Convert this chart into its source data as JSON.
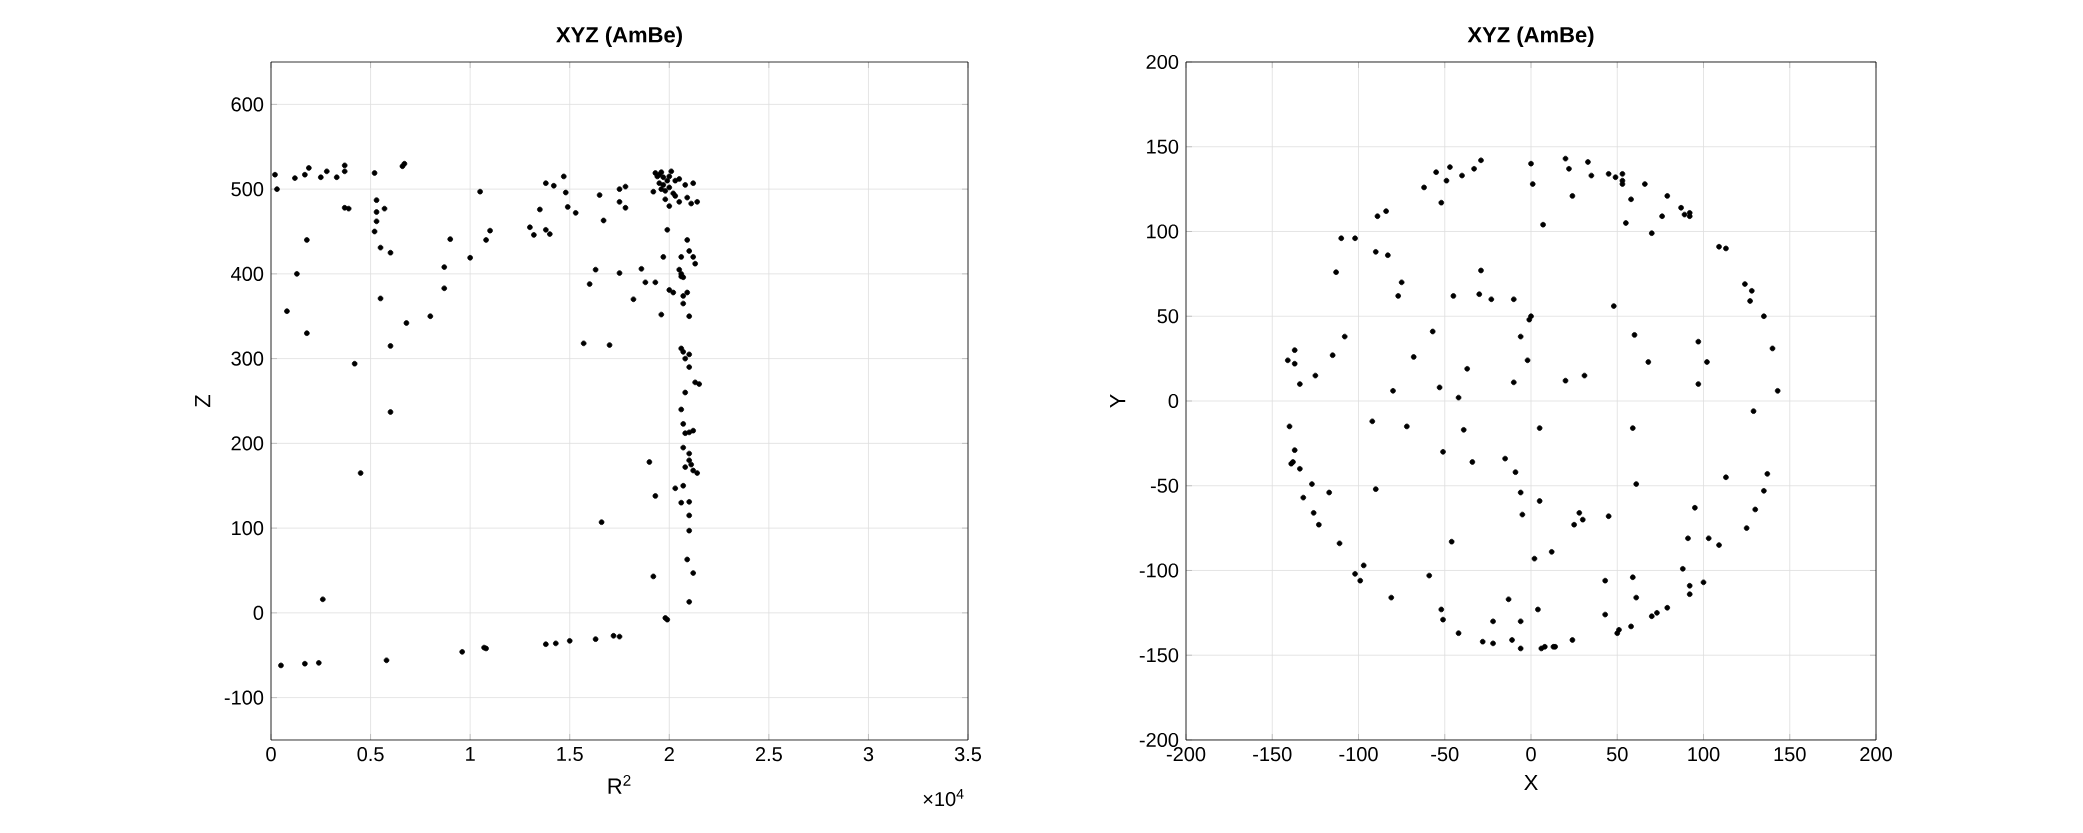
{
  "chart_data": [
    {
      "type": "scatter",
      "title": "XYZ (AmBe)",
      "xlabel": "R$^{2}$",
      "ylabel": "Z",
      "grid": true,
      "annotations": [
        "×10$^{4}$"
      ],
      "xlim": [
        0,
        3.5
      ],
      "ylim": [
        -150,
        650
      ],
      "xticks": [
        0,
        0.5,
        1,
        1.5,
        2,
        2.5,
        3,
        3.5
      ],
      "yticks": [
        -100,
        0,
        100,
        200,
        300,
        400,
        500,
        600
      ],
      "series": [
        {
          "color": "#000000",
          "x": [
            0.02,
            0.03,
            0.12,
            0.17,
            0.19,
            0.25,
            0.28,
            0.33,
            0.37,
            0.37,
            0.52,
            0.66,
            0.67,
            0.37,
            0.39,
            0.53,
            0.53,
            0.57,
            0.53,
            0.52,
            0.55,
            0.6,
            0.18,
            0.08,
            0.13,
            0.18,
            0.42,
            0.55,
            0.6,
            0.68,
            0.8,
            0.6,
            0.45,
            0.87,
            0.87,
            0.9,
            1.0,
            1.05,
            1.08,
            1.1,
            1.3,
            1.32,
            1.35,
            1.38,
            1.4,
            1.38,
            1.42,
            1.47,
            1.48,
            1.49,
            1.53,
            1.6,
            1.63,
            1.65,
            1.67,
            1.7,
            1.57,
            1.75,
            1.75,
            1.75,
            1.78,
            1.78,
            1.82,
            1.86,
            1.88,
            1.9,
            1.92,
            1.93,
            1.93,
            1.96,
            1.98,
            1.99,
            1.97,
            1.92,
            1.93,
            1.94,
            1.95,
            1.96,
            1.97,
            1.95,
            1.97,
            1.99,
            1.96,
            1.98,
            2.0,
            2.01,
            2.03,
            2.05,
            2.0,
            2.02,
            2.08,
            2.12,
            1.98,
            2.0,
            2.03,
            2.05,
            2.09,
            2.11,
            2.14,
            1.99,
            2.06,
            2.09,
            2.1,
            2.12,
            2.13,
            2.05,
            2.06,
            2.06,
            2.07,
            2.0,
            2.02,
            2.07,
            2.07,
            2.09,
            2.1,
            2.06,
            2.07,
            2.1,
            2.08,
            2.1,
            2.13,
            2.15,
            2.08,
            2.06,
            2.07,
            2.08,
            2.1,
            2.12,
            2.07,
            2.1,
            2.1,
            2.08,
            2.11,
            2.12,
            2.14,
            2.03,
            2.07,
            2.06,
            2.1,
            2.1,
            2.1,
            2.09,
            2.12,
            2.1,
            1.66,
            0.05,
            0.17,
            0.24,
            0.58,
            0.96,
            1.07,
            1.08,
            1.38,
            1.43,
            1.5,
            1.63,
            1.72,
            1.75,
            0.26
          ],
          "values": [
            517,
            500,
            513,
            517,
            525,
            514,
            521,
            514,
            528,
            521,
            519,
            527,
            530,
            478,
            477,
            487,
            473,
            477,
            462,
            450,
            431,
            425,
            440,
            356,
            400,
            330,
            294,
            371,
            315,
            342,
            350,
            237,
            165,
            383,
            408,
            441,
            419,
            497,
            440,
            451,
            455,
            446,
            476,
            452,
            447,
            507,
            504,
            515,
            496,
            479,
            472,
            388,
            405,
            493,
            463,
            316,
            318,
            401,
            485,
            500,
            503,
            478,
            370,
            406,
            390,
            178,
            43,
            138,
            390,
            352,
            -6,
            -8,
            420,
            497,
            519,
            515,
            517,
            520,
            514,
            507,
            505,
            510,
            500,
            498,
            515,
            521,
            510,
            512,
            502,
            495,
            505,
            507,
            488,
            480,
            492,
            485,
            490,
            483,
            485,
            452,
            420,
            440,
            427,
            420,
            412,
            405,
            400,
            397,
            396,
            381,
            378,
            374,
            365,
            378,
            350,
            312,
            308,
            305,
            300,
            290,
            272,
            270,
            260,
            240,
            223,
            212,
            213,
            215,
            195,
            188,
            180,
            172,
            175,
            168,
            165,
            147,
            150,
            130,
            131,
            115,
            97,
            63,
            47,
            13,
            107,
            -62,
            -60,
            -59,
            -56,
            -46,
            -41,
            -42,
            -37,
            -36,
            -33,
            -31,
            -27,
            -28,
            16
          ]
        }
      ]
    },
    {
      "type": "scatter",
      "title": "XYZ (AmBe)",
      "xlabel": "X",
      "ylabel": "Y",
      "grid": true,
      "xlim": [
        -200,
        200
      ],
      "ylim": [
        -200,
        200
      ],
      "xticks": [
        -200,
        -150,
        -100,
        -50,
        0,
        50,
        100,
        150,
        200
      ],
      "yticks": [
        -200,
        -150,
        -100,
        -50,
        0,
        50,
        100,
        150,
        200
      ],
      "series": [
        {
          "color": "#000000",
          "x": [
            -29,
            0,
            20,
            33,
            -47,
            -55,
            -33,
            -40,
            22,
            35,
            45,
            49,
            53,
            53,
            53,
            66,
            -49,
            -62,
            1,
            -52,
            24,
            58,
            79,
            87,
            89,
            92,
            92,
            76,
            55,
            7,
            70,
            -84,
            -89,
            -110,
            -102,
            109,
            113,
            -90,
            -83,
            -113,
            -29,
            -75,
            -77,
            -45,
            -30,
            -23,
            -10,
            124,
            128,
            127,
            48,
            0,
            -1,
            135,
            -57,
            -108,
            -6,
            60,
            97,
            -137,
            -141,
            -137,
            -115,
            -68,
            -2,
            68,
            102,
            140,
            -125,
            -37,
            -134,
            -80,
            -53,
            -10,
            20,
            31,
            97,
            143,
            -42,
            129,
            -140,
            -92,
            -72,
            -39,
            5,
            59,
            -137,
            -51,
            -139,
            -138,
            -134,
            -34,
            -15,
            -9,
            -127,
            -117,
            -132,
            -126,
            -123,
            -111,
            -90,
            -6,
            5,
            -5,
            -46,
            2,
            12,
            25,
            28,
            30,
            45,
            61,
            113,
            137,
            135,
            130,
            95,
            91,
            103,
            109,
            125,
            88,
            100,
            92,
            92,
            59,
            43,
            61,
            43,
            79,
            73,
            70,
            58,
            51,
            50,
            -102,
            -99,
            -97,
            -81,
            -59,
            -52,
            -51,
            -42,
            -28,
            -22,
            -22,
            -13,
            -6,
            -11,
            -6,
            4,
            6,
            8,
            13,
            14,
            24
          ],
          "values": [
            142,
            140,
            143,
            141,
            138,
            135,
            137,
            133,
            137,
            133,
            134,
            132,
            134,
            130,
            128,
            128,
            130,
            126,
            128,
            117,
            121,
            119,
            121,
            114,
            110,
            111,
            109,
            109,
            105,
            104,
            99,
            112,
            109,
            96,
            96,
            91,
            90,
            88,
            86,
            76,
            77,
            70,
            62,
            62,
            63,
            60,
            60,
            69,
            65,
            59,
            56,
            50,
            48,
            50,
            41,
            38,
            38,
            39,
            35,
            30,
            24,
            22,
            27,
            26,
            24,
            23,
            23,
            31,
            15,
            19,
            10,
            6,
            8,
            11,
            12,
            15,
            10,
            6,
            2,
            -6,
            -15,
            -12,
            -15,
            -17,
            -16,
            -16,
            -29,
            -30,
            -37,
            -36,
            -40,
            -36,
            -34,
            -42,
            -49,
            -54,
            -57,
            -66,
            -73,
            -84,
            -52,
            -54,
            -59,
            -67,
            -83,
            -93,
            -89,
            -73,
            -66,
            -70,
            -68,
            -49,
            -45,
            -43,
            -53,
            -64,
            -63,
            -81,
            -81,
            -85,
            -75,
            -99,
            -107,
            -109,
            -114,
            -104,
            -106,
            -116,
            -126,
            -122,
            -125,
            -127,
            -133,
            -135,
            -137,
            -102,
            -106,
            -97,
            -116,
            -103,
            -123,
            -129,
            -137,
            -142,
            -143,
            -130,
            -117,
            -130,
            -141,
            -146,
            -123,
            -146,
            -145,
            -145,
            -145,
            -141
          ]
        }
      ]
    }
  ]
}
